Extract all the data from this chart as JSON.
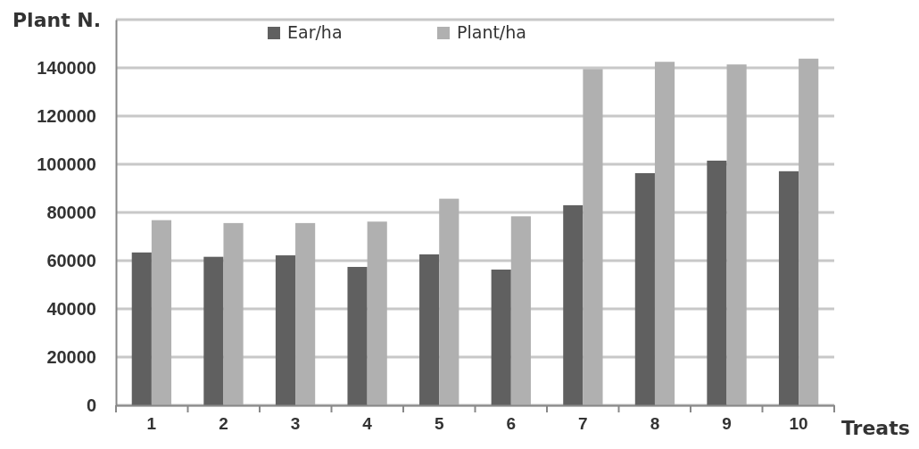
{
  "chart_data": {
    "type": "bar",
    "ylabel": "Plant N.",
    "xlabel": "Treats",
    "categories": [
      "1",
      "2",
      "3",
      "4",
      "5",
      "6",
      "7",
      "8",
      "9",
      "10"
    ],
    "series": [
      {
        "name": "Ear/ha",
        "color": "#606060",
        "values": [
          63400,
          61600,
          62200,
          57400,
          62600,
          56300,
          83000,
          96300,
          101500,
          97100
        ]
      },
      {
        "name": "Plant/ha",
        "color": "#b0b0b0",
        "values": [
          76800,
          75600,
          75600,
          76200,
          85700,
          78400,
          139500,
          142500,
          141400,
          143800
        ]
      }
    ],
    "ylim": [
      0,
      160000
    ],
    "yticks": [
      0,
      20000,
      40000,
      60000,
      80000,
      100000,
      120000,
      140000,
      {
        "value": 160000,
        "label": null
      }
    ],
    "grid": "y",
    "legend": "top"
  }
}
